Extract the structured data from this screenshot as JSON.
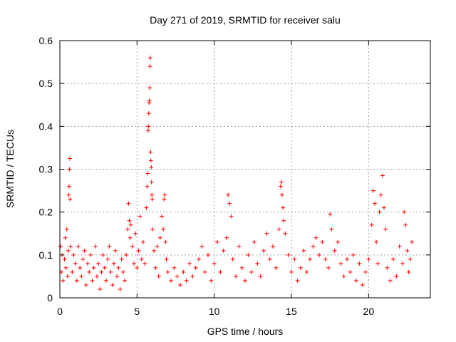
{
  "chart_data": {
    "type": "scatter",
    "title": "Day 271 of 2019, SRMTID for receiver salu",
    "xlabel": "GPS time / hours",
    "ylabel": "SRMTID / TECUs",
    "xlim": [
      0,
      24
    ],
    "ylim": [
      0,
      0.6
    ],
    "xticks": [
      0,
      5,
      10,
      15,
      20
    ],
    "xtick_labels": [
      "0",
      "5",
      "10",
      "15",
      "20"
    ],
    "yticks": [
      0,
      0.1,
      0.2,
      0.3,
      0.4,
      0.5,
      0.6
    ],
    "ytick_labels": [
      "0",
      "0.1",
      "0.2",
      "0.3",
      "0.4",
      "0.5",
      "0.6"
    ],
    "grid": true,
    "marker": "+",
    "color": "#ff0000",
    "series": [
      {
        "name": "SRMTID",
        "points": [
          [
            0.05,
            0.12
          ],
          [
            0.1,
            0.06
          ],
          [
            0.15,
            0.1
          ],
          [
            0.2,
            0.04
          ],
          [
            0.3,
            0.09
          ],
          [
            0.35,
            0.14
          ],
          [
            0.4,
            0.07
          ],
          [
            0.45,
            0.16
          ],
          [
            0.5,
            0.05
          ],
          [
            0.55,
            0.11
          ],
          [
            0.6,
            0.26
          ],
          [
            0.62,
            0.3
          ],
          [
            0.65,
            0.325
          ],
          [
            0.58,
            0.24
          ],
          [
            0.66,
            0.23
          ],
          [
            0.7,
            0.12
          ],
          [
            0.8,
            0.06
          ],
          [
            0.9,
            0.1
          ],
          [
            1.0,
            0.08
          ],
          [
            1.1,
            0.04
          ],
          [
            1.2,
            0.12
          ],
          [
            1.3,
            0.07
          ],
          [
            1.4,
            0.05
          ],
          [
            1.5,
            0.09
          ],
          [
            1.6,
            0.11
          ],
          [
            1.7,
            0.03
          ],
          [
            1.8,
            0.08
          ],
          [
            1.9,
            0.06
          ],
          [
            2.0,
            0.1
          ],
          [
            2.1,
            0.04
          ],
          [
            2.2,
            0.07
          ],
          [
            2.3,
            0.12
          ],
          [
            2.4,
            0.05
          ],
          [
            2.5,
            0.08
          ],
          [
            2.6,
            0.02
          ],
          [
            2.7,
            0.06
          ],
          [
            2.8,
            0.1
          ],
          [
            2.9,
            0.07
          ],
          [
            3.0,
            0.04
          ],
          [
            3.1,
            0.09
          ],
          [
            3.2,
            0.12
          ],
          [
            3.3,
            0.06
          ],
          [
            3.4,
            0.03
          ],
          [
            3.5,
            0.08
          ],
          [
            3.6,
            0.11
          ],
          [
            3.7,
            0.05
          ],
          [
            3.8,
            0.07
          ],
          [
            3.9,
            0.02
          ],
          [
            4.0,
            0.09
          ],
          [
            4.1,
            0.06
          ],
          [
            4.2,
            0.04
          ],
          [
            4.3,
            0.1
          ],
          [
            4.4,
            0.16
          ],
          [
            4.45,
            0.22
          ],
          [
            4.5,
            0.18
          ],
          [
            4.55,
            0.14
          ],
          [
            4.6,
            0.17
          ],
          [
            4.7,
            0.12
          ],
          [
            4.8,
            0.08
          ],
          [
            4.9,
            0.15
          ],
          [
            5.0,
            0.07
          ],
          [
            5.1,
            0.11
          ],
          [
            5.2,
            0.19
          ],
          [
            5.3,
            0.09
          ],
          [
            5.4,
            0.13
          ],
          [
            5.5,
            0.08
          ],
          [
            5.6,
            0.21
          ],
          [
            5.65,
            0.26
          ],
          [
            5.7,
            0.29
          ],
          [
            5.72,
            0.39
          ],
          [
            5.74,
            0.4
          ],
          [
            5.76,
            0.43
          ],
          [
            5.78,
            0.455
          ],
          [
            5.8,
            0.46
          ],
          [
            5.82,
            0.49
          ],
          [
            5.84,
            0.54
          ],
          [
            5.86,
            0.56
          ],
          [
            5.88,
            0.34
          ],
          [
            5.9,
            0.32
          ],
          [
            5.92,
            0.305
          ],
          [
            5.94,
            0.27
          ],
          [
            5.96,
            0.24
          ],
          [
            5.98,
            0.23
          ],
          [
            6.0,
            0.16
          ],
          [
            6.1,
            0.11
          ],
          [
            6.2,
            0.07
          ],
          [
            6.3,
            0.12
          ],
          [
            6.4,
            0.05
          ],
          [
            6.5,
            0.14
          ],
          [
            6.6,
            0.19
          ],
          [
            6.7,
            0.16
          ],
          [
            6.75,
            0.23
          ],
          [
            6.8,
            0.24
          ],
          [
            6.85,
            0.13
          ],
          [
            6.9,
            0.09
          ],
          [
            7.0,
            0.06
          ],
          [
            7.2,
            0.04
          ],
          [
            7.4,
            0.07
          ],
          [
            7.6,
            0.05
          ],
          [
            7.8,
            0.03
          ],
          [
            8.0,
            0.06
          ],
          [
            8.2,
            0.04
          ],
          [
            8.4,
            0.08
          ],
          [
            8.6,
            0.05
          ],
          [
            8.8,
            0.07
          ],
          [
            9.0,
            0.09
          ],
          [
            9.2,
            0.12
          ],
          [
            9.4,
            0.06
          ],
          [
            9.6,
            0.1
          ],
          [
            9.8,
            0.04
          ],
          [
            10.0,
            0.08
          ],
          [
            10.2,
            0.13
          ],
          [
            10.4,
            0.06
          ],
          [
            10.6,
            0.11
          ],
          [
            10.8,
            0.14
          ],
          [
            10.9,
            0.24
          ],
          [
            11.0,
            0.22
          ],
          [
            11.1,
            0.19
          ],
          [
            11.2,
            0.09
          ],
          [
            11.4,
            0.05
          ],
          [
            11.6,
            0.12
          ],
          [
            11.8,
            0.07
          ],
          [
            12.0,
            0.04
          ],
          [
            12.2,
            0.1
          ],
          [
            12.4,
            0.06
          ],
          [
            12.6,
            0.13
          ],
          [
            12.8,
            0.08
          ],
          [
            13.0,
            0.05
          ],
          [
            13.2,
            0.11
          ],
          [
            13.4,
            0.15
          ],
          [
            13.6,
            0.09
          ],
          [
            13.8,
            0.12
          ],
          [
            14.0,
            0.07
          ],
          [
            14.2,
            0.16
          ],
          [
            14.3,
            0.26
          ],
          [
            14.35,
            0.27
          ],
          [
            14.4,
            0.24
          ],
          [
            14.45,
            0.21
          ],
          [
            14.5,
            0.18
          ],
          [
            14.6,
            0.15
          ],
          [
            14.8,
            0.1
          ],
          [
            15.0,
            0.06
          ],
          [
            15.2,
            0.09
          ],
          [
            15.4,
            0.04
          ],
          [
            15.6,
            0.07
          ],
          [
            15.8,
            0.11
          ],
          [
            16.0,
            0.06
          ],
          [
            16.2,
            0.09
          ],
          [
            16.4,
            0.12
          ],
          [
            16.6,
            0.14
          ],
          [
            16.8,
            0.1
          ],
          [
            17.0,
            0.13
          ],
          [
            17.2,
            0.09
          ],
          [
            17.4,
            0.07
          ],
          [
            17.5,
            0.195
          ],
          [
            17.6,
            0.16
          ],
          [
            17.8,
            0.11
          ],
          [
            18.0,
            0.13
          ],
          [
            18.2,
            0.08
          ],
          [
            18.4,
            0.05
          ],
          [
            18.6,
            0.09
          ],
          [
            18.8,
            0.06
          ],
          [
            19.0,
            0.1
          ],
          [
            19.2,
            0.04
          ],
          [
            19.4,
            0.08
          ],
          [
            19.6,
            0.03
          ],
          [
            19.8,
            0.06
          ],
          [
            20.0,
            0.09
          ],
          [
            20.2,
            0.17
          ],
          [
            20.3,
            0.25
          ],
          [
            20.4,
            0.22
          ],
          [
            20.5,
            0.13
          ],
          [
            20.6,
            0.08
          ],
          [
            20.7,
            0.2
          ],
          [
            20.8,
            0.24
          ],
          [
            20.9,
            0.285
          ],
          [
            21.0,
            0.21
          ],
          [
            21.1,
            0.16
          ],
          [
            21.2,
            0.07
          ],
          [
            21.4,
            0.04
          ],
          [
            21.6,
            0.09
          ],
          [
            21.8,
            0.05
          ],
          [
            22.0,
            0.12
          ],
          [
            22.2,
            0.08
          ],
          [
            22.3,
            0.2
          ],
          [
            22.4,
            0.17
          ],
          [
            22.5,
            0.11
          ],
          [
            22.6,
            0.06
          ],
          [
            22.7,
            0.09
          ],
          [
            22.8,
            0.13
          ]
        ]
      }
    ]
  }
}
